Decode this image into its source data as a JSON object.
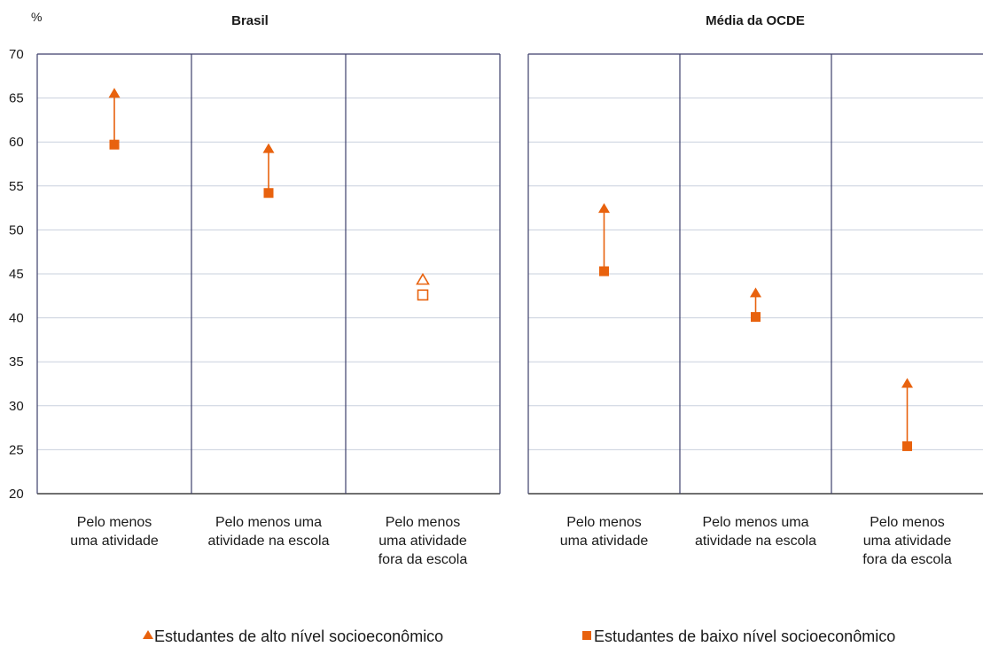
{
  "chart_data": {
    "type": "scatter",
    "unit_label": "%",
    "ylim": [
      20,
      70
    ],
    "yticks": [
      20,
      25,
      30,
      35,
      40,
      45,
      50,
      55,
      60,
      65,
      70
    ],
    "grid": true,
    "legend_position": "bottom",
    "categories": [
      [
        "Pelo menos",
        "uma atividade"
      ],
      [
        "Pelo menos uma",
        "atividade na escola"
      ],
      [
        "Pelo menos",
        "uma atividade",
        "fora da escola"
      ]
    ],
    "panels": [
      {
        "title": "Brasil",
        "points": [
          {
            "high": 65.5,
            "low": 59.7,
            "significant": true
          },
          {
            "high": 59.2,
            "low": 54.2,
            "significant": true
          },
          {
            "high": 44.3,
            "low": 42.6,
            "significant": false
          }
        ]
      },
      {
        "title": "Média da OCDE",
        "points": [
          {
            "high": 52.4,
            "low": 45.3,
            "significant": true
          },
          {
            "high": 42.8,
            "low": 40.1,
            "significant": true
          },
          {
            "high": 32.5,
            "low": 25.4,
            "significant": true
          }
        ]
      }
    ],
    "series": [
      {
        "name": "Estudantes de alto nível socioeconômico",
        "marker": "triangle"
      },
      {
        "name": "Estudantes de baixo nível socioeconômico",
        "marker": "square"
      }
    ],
    "colors": {
      "marker": "#e8620e",
      "grid": "#c9d0dd",
      "frame": "#3d3f6b",
      "axis": "#1a1a1a"
    }
  }
}
